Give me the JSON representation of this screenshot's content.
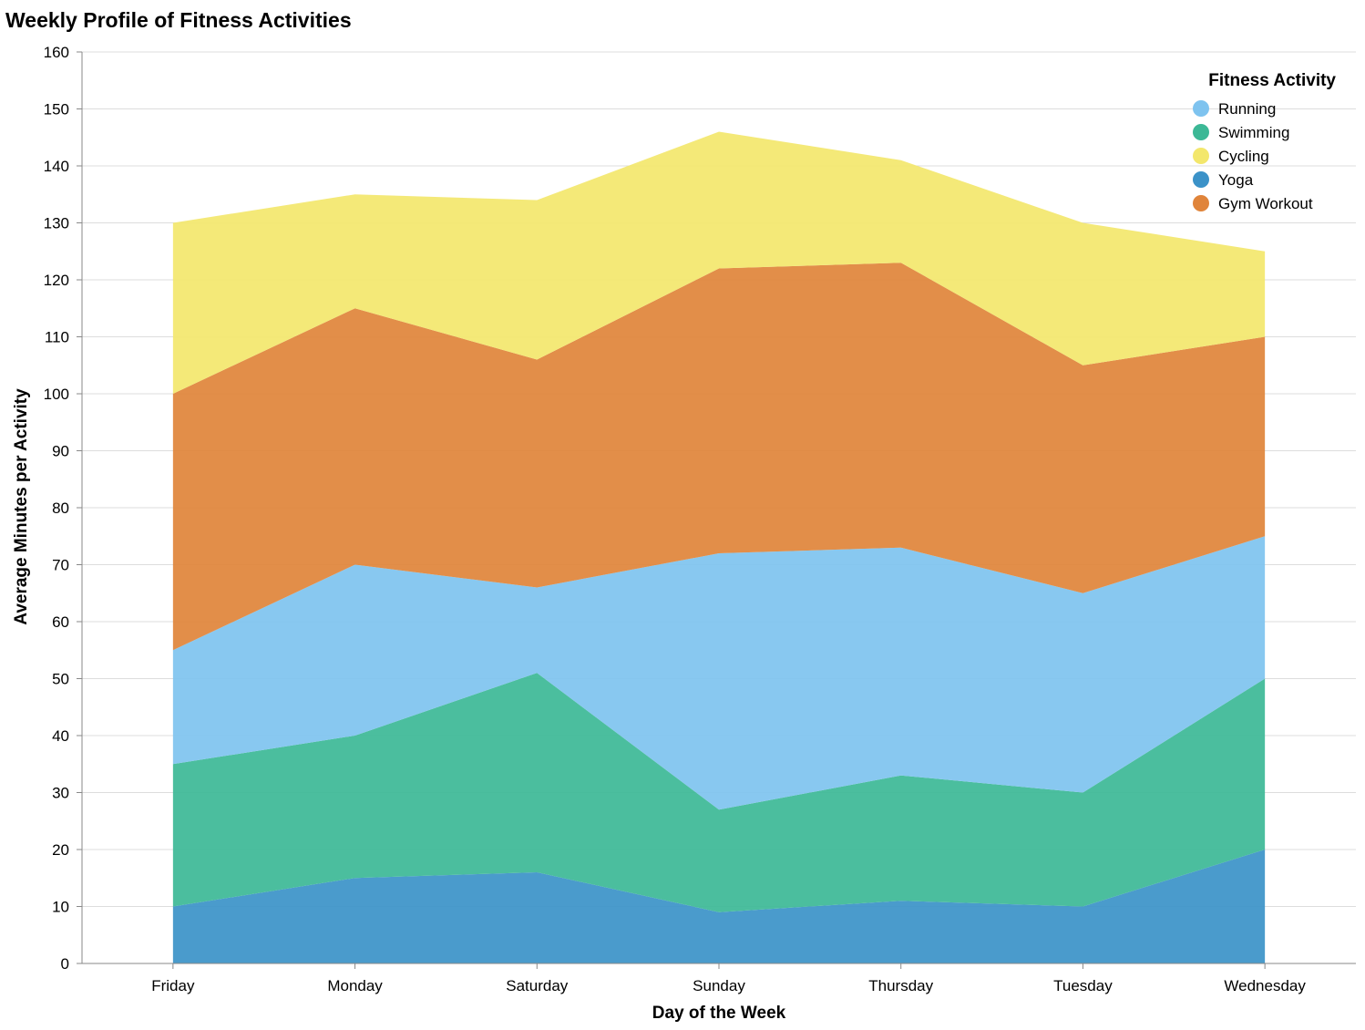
{
  "chart_data": {
    "type": "area",
    "stacked": true,
    "title": "Weekly Profile of Fitness Activities",
    "xlabel": "Day of the Week",
    "ylabel": "Average Minutes per Activity",
    "categories": [
      "Friday",
      "Monday",
      "Saturday",
      "Sunday",
      "Thursday",
      "Tuesday",
      "Wednesday"
    ],
    "ylim": [
      0,
      160
    ],
    "yticks": [
      0,
      10,
      20,
      30,
      40,
      50,
      60,
      70,
      80,
      90,
      100,
      110,
      120,
      130,
      140,
      150,
      160
    ],
    "grid": true,
    "legend_title": "Fitness Activity",
    "legend_position": "top-right",
    "legend_order": [
      "Running",
      "Swimming",
      "Cycling",
      "Yoga",
      "Gym Workout"
    ],
    "stack_order": [
      "Yoga",
      "Swimming",
      "Running",
      "Gym Workout",
      "Cycling"
    ],
    "series": [
      {
        "name": "Running",
        "color": "#7ec3ef",
        "values": [
          20,
          30,
          15,
          45,
          40,
          35,
          25
        ]
      },
      {
        "name": "Swimming",
        "color": "#3cb896",
        "values": [
          25,
          25,
          35,
          18,
          22,
          20,
          30
        ]
      },
      {
        "name": "Cycling",
        "color": "#f3e76c",
        "values": [
          30,
          20,
          28,
          24,
          18,
          25,
          15
        ]
      },
      {
        "name": "Yoga",
        "color": "#3b92c8",
        "values": [
          10,
          15,
          16,
          9,
          11,
          10,
          20
        ]
      },
      {
        "name": "Gym Workout",
        "color": "#e0843a",
        "values": [
          45,
          45,
          40,
          50,
          50,
          40,
          35
        ]
      }
    ]
  }
}
